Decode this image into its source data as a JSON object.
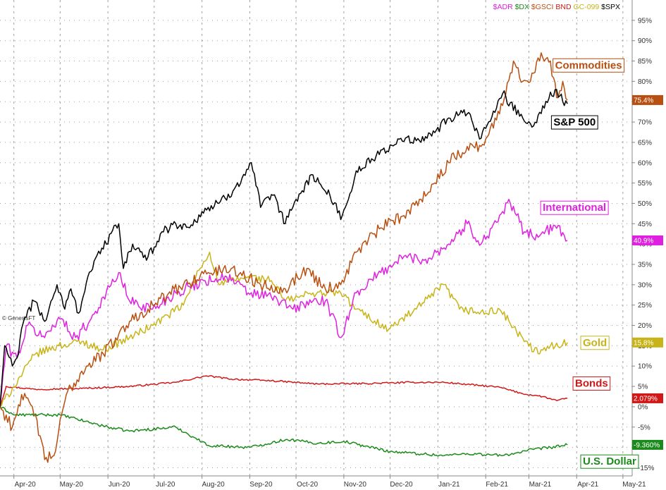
{
  "credit": "© GenesisFT",
  "legend": [
    {
      "label": "$ADR",
      "color": "#e020e0"
    },
    {
      "label": "$DX",
      "color": "#1a8a1a"
    },
    {
      "label": "$GSCI",
      "color": "#b84f10"
    },
    {
      "label": "BND",
      "color": "#d01818"
    },
    {
      "label": "GC-099",
      "color": "#c8b418"
    },
    {
      "label": "$SPX",
      "color": "#000000"
    }
  ],
  "chart_data": {
    "type": "line",
    "x_range": [
      "2020-03-23",
      "2021-05-07"
    ],
    "ylim": [
      -17,
      100
    ],
    "y_axis_side": "right",
    "grid": true,
    "y_ticks": [
      {
        "value": 95,
        "label": "95%"
      },
      {
        "value": 90,
        "label": "90%"
      },
      {
        "value": 85,
        "label": "85%"
      },
      {
        "value": 80,
        "label": "80%"
      },
      {
        "value": 75,
        "label": "75%"
      },
      {
        "value": 70,
        "label": "70%"
      },
      {
        "value": 65,
        "label": "65%"
      },
      {
        "value": 60,
        "label": "60%"
      },
      {
        "value": 55,
        "label": "55%"
      },
      {
        "value": 50,
        "label": "50%"
      },
      {
        "value": 45,
        "label": "45%"
      },
      {
        "value": 40,
        "label": "40%"
      },
      {
        "value": 35,
        "label": "35%"
      },
      {
        "value": 30,
        "label": "30%"
      },
      {
        "value": 25,
        "label": "25%"
      },
      {
        "value": 20,
        "label": "20%"
      },
      {
        "value": 15,
        "label": "15%"
      },
      {
        "value": 10,
        "label": "10%"
      },
      {
        "value": 5,
        "label": "5%"
      },
      {
        "value": 0,
        "label": "0%"
      },
      {
        "value": -5,
        "label": "-5%"
      },
      {
        "value": -10,
        "label": "-10%"
      },
      {
        "value": -15,
        "label": "-15%"
      }
    ],
    "x_ticks": [
      {
        "date": "2020-04-01",
        "label": "Apr-20"
      },
      {
        "date": "2020-05-01",
        "label": "May-20"
      },
      {
        "date": "2020-06-01",
        "label": "Jun-20"
      },
      {
        "date": "2020-07-01",
        "label": "Jul-20"
      },
      {
        "date": "2020-08-01",
        "label": "Aug-20"
      },
      {
        "date": "2020-09-01",
        "label": "Sep-20"
      },
      {
        "date": "2020-10-01",
        "label": "Oct-20"
      },
      {
        "date": "2020-11-01",
        "label": "Nov-20"
      },
      {
        "date": "2020-12-01",
        "label": "Dec-20"
      },
      {
        "date": "2021-01-01",
        "label": "Jan-21"
      },
      {
        "date": "2021-02-01",
        "label": "Feb-21"
      },
      {
        "date": "2021-03-01",
        "label": "Mar-21"
      },
      {
        "date": "2021-04-01",
        "label": "Apr-21"
      },
      {
        "date": "2021-05-01",
        "label": "May-21"
      }
    ],
    "series": [
      {
        "name": "$SPX",
        "color": "#000000",
        "last_label": "",
        "callout": {
          "text": "S&P 500",
          "anchor": [
            "2021-03-17",
            70.0
          ],
          "color": "#000000"
        },
        "points": [
          [
            "2020-03-23",
            0
          ],
          [
            "2020-03-26",
            15
          ],
          [
            "2020-03-31",
            10
          ],
          [
            "2020-04-03",
            12
          ],
          [
            "2020-04-08",
            22
          ],
          [
            "2020-04-14",
            26
          ],
          [
            "2020-04-21",
            21
          ],
          [
            "2020-04-29",
            30
          ],
          [
            "2020-05-04",
            24
          ],
          [
            "2020-05-08",
            29
          ],
          [
            "2020-05-13",
            23
          ],
          [
            "2020-05-19",
            32
          ],
          [
            "2020-05-28",
            39
          ],
          [
            "2020-06-08",
            45
          ],
          [
            "2020-06-11",
            34
          ],
          [
            "2020-06-17",
            40
          ],
          [
            "2020-06-26",
            36
          ],
          [
            "2020-07-06",
            43
          ],
          [
            "2020-07-15",
            45
          ],
          [
            "2020-07-24",
            44
          ],
          [
            "2020-08-01",
            48
          ],
          [
            "2020-08-12",
            50
          ],
          [
            "2020-08-21",
            53
          ],
          [
            "2020-09-02",
            60
          ],
          [
            "2020-09-08",
            49
          ],
          [
            "2020-09-16",
            52
          ],
          [
            "2020-09-24",
            45
          ],
          [
            "2020-10-01",
            51
          ],
          [
            "2020-10-12",
            57
          ],
          [
            "2020-10-20",
            53
          ],
          [
            "2020-10-27",
            50
          ],
          [
            "2020-10-30",
            46
          ],
          [
            "2020-11-04",
            51
          ],
          [
            "2020-11-09",
            58
          ],
          [
            "2020-11-24",
            62
          ],
          [
            "2020-12-08",
            66
          ],
          [
            "2020-12-21",
            65
          ],
          [
            "2020-12-31",
            68
          ],
          [
            "2021-01-08",
            71
          ],
          [
            "2021-01-20",
            72
          ],
          [
            "2021-01-29",
            66
          ],
          [
            "2021-02-12",
            77
          ],
          [
            "2021-02-25",
            71
          ],
          [
            "2021-03-04",
            69
          ],
          [
            "2021-03-10",
            74
          ],
          [
            "2021-03-19",
            78
          ],
          [
            "2021-03-23",
            75
          ],
          [
            "2021-03-26",
            74.5
          ]
        ]
      },
      {
        "name": "$GSCI",
        "color": "#b84f10",
        "last_label": "75.4%",
        "callout": {
          "text": "Commodities",
          "anchor": [
            "2021-03-18",
            84.0
          ],
          "color": "#b84f10"
        },
        "points": [
          [
            "2020-03-23",
            0
          ],
          [
            "2020-03-31",
            -5
          ],
          [
            "2020-04-06",
            3
          ],
          [
            "2020-04-15",
            -2
          ],
          [
            "2020-04-21",
            -13
          ],
          [
            "2020-04-27",
            -12
          ],
          [
            "2020-05-05",
            3
          ],
          [
            "2020-05-18",
            10
          ],
          [
            "2020-05-29",
            13
          ],
          [
            "2020-06-15",
            21
          ],
          [
            "2020-06-30",
            25
          ],
          [
            "2020-07-20",
            30
          ],
          [
            "2020-08-05",
            33
          ],
          [
            "2020-08-20",
            34
          ],
          [
            "2020-09-08",
            30
          ],
          [
            "2020-09-24",
            29
          ],
          [
            "2020-10-08",
            34
          ],
          [
            "2020-10-20",
            29
          ],
          [
            "2020-10-30",
            30
          ],
          [
            "2020-11-09",
            38
          ],
          [
            "2020-11-25",
            44
          ],
          [
            "2020-12-10",
            47
          ],
          [
            "2020-12-30",
            55
          ],
          [
            "2021-01-08",
            60
          ],
          [
            "2021-01-20",
            64
          ],
          [
            "2021-01-29",
            64
          ],
          [
            "2021-02-10",
            72
          ],
          [
            "2021-02-19",
            85
          ],
          [
            "2021-02-25",
            80
          ],
          [
            "2021-03-04",
            82
          ],
          [
            "2021-03-09",
            87
          ],
          [
            "2021-03-15",
            85
          ],
          [
            "2021-03-19",
            76
          ],
          [
            "2021-03-23",
            80
          ],
          [
            "2021-03-26",
            75.4
          ]
        ]
      },
      {
        "name": "$ADR",
        "color": "#e020e0",
        "last_label": "40.9%",
        "callout": {
          "text": "International",
          "anchor": [
            "2021-03-10",
            49.0
          ],
          "color": "#e020e0"
        },
        "points": [
          [
            "2020-03-23",
            0
          ],
          [
            "2020-03-27",
            15
          ],
          [
            "2020-04-03",
            12
          ],
          [
            "2020-04-10",
            20
          ],
          [
            "2020-04-21",
            17
          ],
          [
            "2020-04-30",
            22
          ],
          [
            "2020-05-11",
            17
          ],
          [
            "2020-05-20",
            21
          ],
          [
            "2020-06-08",
            33
          ],
          [
            "2020-06-15",
            26
          ],
          [
            "2020-06-30",
            24
          ],
          [
            "2020-07-15",
            28
          ],
          [
            "2020-08-03",
            31
          ],
          [
            "2020-08-17",
            32
          ],
          [
            "2020-08-31",
            28
          ],
          [
            "2020-09-15",
            27
          ],
          [
            "2020-09-29",
            24
          ],
          [
            "2020-10-12",
            26
          ],
          [
            "2020-10-20",
            26
          ],
          [
            "2020-10-30",
            17
          ],
          [
            "2020-11-09",
            28
          ],
          [
            "2020-11-25",
            33
          ],
          [
            "2020-12-10",
            37
          ],
          [
            "2020-12-23",
            36
          ],
          [
            "2021-01-08",
            40
          ],
          [
            "2021-01-20",
            45
          ],
          [
            "2021-01-29",
            40
          ],
          [
            "2021-02-12",
            48
          ],
          [
            "2021-02-17",
            50
          ],
          [
            "2021-02-26",
            43
          ],
          [
            "2021-03-08",
            42
          ],
          [
            "2021-03-18",
            44.5
          ],
          [
            "2021-03-26",
            40.9
          ]
        ]
      },
      {
        "name": "GC-099",
        "color": "#c8b418",
        "last_label": "15.8%",
        "callout": {
          "text": "Gold",
          "anchor": [
            "2021-04-05",
            15.8
          ],
          "color": "#c8b418"
        },
        "points": [
          [
            "2020-03-23",
            0
          ],
          [
            "2020-04-01",
            5
          ],
          [
            "2020-04-15",
            13
          ],
          [
            "2020-04-30",
            15
          ],
          [
            "2020-05-15",
            16
          ],
          [
            "2020-05-29",
            14
          ],
          [
            "2020-06-15",
            17
          ],
          [
            "2020-06-30",
            20
          ],
          [
            "2020-07-20",
            25
          ],
          [
            "2020-07-28",
            32
          ],
          [
            "2020-08-06",
            38
          ],
          [
            "2020-08-12",
            30
          ],
          [
            "2020-08-31",
            32
          ],
          [
            "2020-09-15",
            31
          ],
          [
            "2020-09-24",
            26
          ],
          [
            "2020-10-12",
            28
          ],
          [
            "2020-10-30",
            28
          ],
          [
            "2020-11-09",
            24
          ],
          [
            "2020-11-30",
            19
          ],
          [
            "2020-12-18",
            24
          ],
          [
            "2021-01-05",
            30
          ],
          [
            "2021-01-15",
            24
          ],
          [
            "2021-02-01",
            23
          ],
          [
            "2021-02-10",
            24
          ],
          [
            "2021-02-26",
            16
          ],
          [
            "2021-03-08",
            13
          ],
          [
            "2021-03-15",
            15
          ],
          [
            "2021-03-26",
            15.8
          ]
        ]
      },
      {
        "name": "BND",
        "color": "#d01818",
        "last_label": "2.079%",
        "callout": {
          "text": "Bonds",
          "anchor": [
            "2021-03-31",
            5.8
          ],
          "color": "#d01818"
        },
        "points": [
          [
            "2020-03-23",
            0
          ],
          [
            "2020-03-27",
            5
          ],
          [
            "2020-04-15",
            4.3
          ],
          [
            "2020-05-15",
            4.5
          ],
          [
            "2020-06-15",
            5
          ],
          [
            "2020-07-15",
            6
          ],
          [
            "2020-08-04",
            7.6
          ],
          [
            "2020-08-20",
            6.8
          ],
          [
            "2020-09-15",
            6.4
          ],
          [
            "2020-10-15",
            5.6
          ],
          [
            "2020-11-15",
            5.7
          ],
          [
            "2020-12-15",
            6.0
          ],
          [
            "2021-01-05",
            6
          ],
          [
            "2021-01-20",
            5.5
          ],
          [
            "2021-02-10",
            4.8
          ],
          [
            "2021-02-25",
            3.2
          ],
          [
            "2021-03-10",
            2.5
          ],
          [
            "2021-03-19",
            1.5
          ],
          [
            "2021-03-26",
            2.079
          ]
        ]
      },
      {
        "name": "$DX",
        "color": "#1a8a1a",
        "last_label": "-9.360%",
        "callout": {
          "text": "U.S. Dollar",
          "anchor": [
            "2021-04-05",
            -13.4
          ],
          "color": "#1a8a1a"
        },
        "points": [
          [
            "2020-03-23",
            0
          ],
          [
            "2020-04-01",
            -2
          ],
          [
            "2020-05-01",
            -2
          ],
          [
            "2020-06-01",
            -5
          ],
          [
            "2020-06-15",
            -6
          ],
          [
            "2020-07-15",
            -5
          ],
          [
            "2020-08-05",
            -9.5
          ],
          [
            "2020-09-01",
            -10
          ],
          [
            "2020-09-25",
            -8
          ],
          [
            "2020-10-15",
            -9
          ],
          [
            "2020-11-01",
            -8.5
          ],
          [
            "2020-12-01",
            -11
          ],
          [
            "2021-01-05",
            -12
          ],
          [
            "2021-01-20",
            -11.5
          ],
          [
            "2021-02-12",
            -12
          ],
          [
            "2021-03-04",
            -10.5
          ],
          [
            "2021-03-15",
            -10
          ],
          [
            "2021-03-26",
            -9.36
          ]
        ]
      }
    ]
  }
}
